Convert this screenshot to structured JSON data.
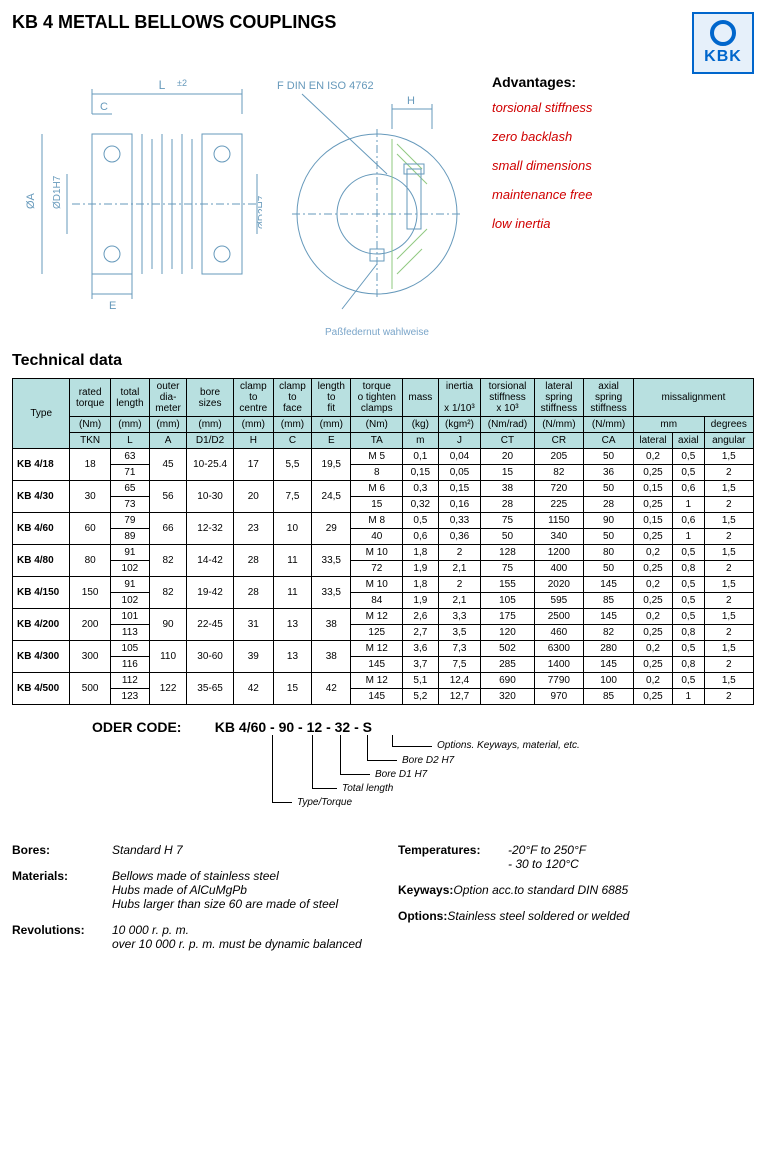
{
  "title": "KB 4  METALL BELLOWS COUPLINGS",
  "logo_text": "KBK",
  "diagram_labels": {
    "L": "L",
    "L_tol": "±2",
    "C": "C",
    "E": "E",
    "A": "ØA",
    "D1": "ØD1H7",
    "D2": "ØD2H7",
    "F": "F  DIN  EN  ISO  4762",
    "H": "H",
    "caption": "Paßfedernut wahlweise"
  },
  "advantages": {
    "title": "Advantages:",
    "items": [
      "torsional stiffness",
      "zero backlash",
      "small dimensions",
      "maintenance free",
      "low inertia"
    ]
  },
  "tech_title": "Technical data",
  "table": {
    "header_bg": "#b8e0e0",
    "columns_top": [
      "Type",
      "rated torque",
      "total length",
      "outer dia-meter",
      "bore sizes",
      "clamp to centre",
      "clamp to face",
      "length to fit",
      "torque o tighten clamps",
      "mass",
      "inertia",
      "torsional stiffness",
      "lateral spring stiffness",
      "axial spring stiffness",
      "missalignment"
    ],
    "units": [
      "",
      "(Nm)\nTKN",
      "(mm)\nL",
      "(mm)\nA",
      "(mm)\nD1/D2",
      "(mm)\nH",
      "(mm)\nC",
      "(mm)\nE",
      "(Nm)\nTA",
      "(kg)\nm",
      "x 1/10³\n(kgm²)\nJ",
      "x 10³\n(Nm/rad)\nCT",
      "(N/mm)\nCR",
      "(N/mm)\nCA",
      "mm",
      "degrees"
    ],
    "misal_sub": [
      "lateral",
      "axial",
      "angular"
    ],
    "rows": [
      {
        "type": "KB 4/18",
        "tkn": "18",
        "L": [
          "63",
          "71"
        ],
        "A": "45",
        "D": "10-25.4",
        "H": "17",
        "C": "5,5",
        "E": "19,5",
        "TA": [
          "M 5",
          "8"
        ],
        "m": [
          "0,1",
          "0,15"
        ],
        "J": [
          "0,04",
          "0,05"
        ],
        "CT": [
          "20",
          "15"
        ],
        "CR": [
          "205",
          "82"
        ],
        "CA": [
          "50",
          "36"
        ],
        "lat": [
          "0,2",
          "0,25"
        ],
        "ax": [
          "0,5",
          "0,5"
        ],
        "ang": [
          "1,5",
          "2"
        ]
      },
      {
        "type": "KB 4/30",
        "tkn": "30",
        "L": [
          "65",
          "73"
        ],
        "A": "56",
        "D": "10-30",
        "H": "20",
        "C": "7,5",
        "E": "24,5",
        "TA": [
          "M 6",
          "15"
        ],
        "m": [
          "0,3",
          "0,32"
        ],
        "J": [
          "0,15",
          "0,16"
        ],
        "CT": [
          "38",
          "28"
        ],
        "CR": [
          "720",
          "225"
        ],
        "CA": [
          "50",
          "28"
        ],
        "lat": [
          "0,15",
          "0,25"
        ],
        "ax": [
          "0,6",
          "1"
        ],
        "ang": [
          "1,5",
          "2"
        ]
      },
      {
        "type": "KB 4/60",
        "tkn": "60",
        "L": [
          "79",
          "89"
        ],
        "A": "66",
        "D": "12-32",
        "H": "23",
        "C": "10",
        "E": "29",
        "TA": [
          "M 8",
          "40"
        ],
        "m": [
          "0,5",
          "0,6"
        ],
        "J": [
          "0,33",
          "0,36"
        ],
        "CT": [
          "75",
          "50"
        ],
        "CR": [
          "1150",
          "340"
        ],
        "CA": [
          "90",
          "50"
        ],
        "lat": [
          "0,15",
          "0,25"
        ],
        "ax": [
          "0,6",
          "1"
        ],
        "ang": [
          "1,5",
          "2"
        ]
      },
      {
        "type": "KB 4/80",
        "tkn": "80",
        "L": [
          "91",
          "102"
        ],
        "A": "82",
        "D": "14-42",
        "H": "28",
        "C": "11",
        "E": "33,5",
        "TA": [
          "M 10",
          "72"
        ],
        "m": [
          "1,8",
          "1,9"
        ],
        "J": [
          "2",
          "2,1"
        ],
        "CT": [
          "128",
          "75"
        ],
        "CR": [
          "1200",
          "400"
        ],
        "CA": [
          "80",
          "50"
        ],
        "lat": [
          "0,2",
          "0,25"
        ],
        "ax": [
          "0,5",
          "0,8"
        ],
        "ang": [
          "1,5",
          "2"
        ]
      },
      {
        "type": "KB 4/150",
        "tkn": "150",
        "L": [
          "91",
          "102"
        ],
        "A": "82",
        "D": "19-42",
        "H": "28",
        "C": "11",
        "E": "33,5",
        "TA": [
          "M 10",
          "84"
        ],
        "m": [
          "1,8",
          "1,9"
        ],
        "J": [
          "2",
          "2,1"
        ],
        "CT": [
          "155",
          "105"
        ],
        "CR": [
          "2020",
          "595"
        ],
        "CA": [
          "145",
          "85"
        ],
        "lat": [
          "0,2",
          "0,25"
        ],
        "ax": [
          "0,5",
          "0,5"
        ],
        "ang": [
          "1,5",
          "2"
        ]
      },
      {
        "type": "KB 4/200",
        "tkn": "200",
        "L": [
          "101",
          "113"
        ],
        "A": "90",
        "D": "22-45",
        "H": "31",
        "C": "13",
        "E": "38",
        "TA": [
          "M 12",
          "125"
        ],
        "m": [
          "2,6",
          "2,7"
        ],
        "J": [
          "3,3",
          "3,5"
        ],
        "CT": [
          "175",
          "120"
        ],
        "CR": [
          "2500",
          "460"
        ],
        "CA": [
          "145",
          "82"
        ],
        "lat": [
          "0,2",
          "0,25"
        ],
        "ax": [
          "0,5",
          "0,8"
        ],
        "ang": [
          "1,5",
          "2"
        ]
      },
      {
        "type": "KB 4/300",
        "tkn": "300",
        "L": [
          "105",
          "116"
        ],
        "A": "110",
        "D": "30-60",
        "H": "39",
        "C": "13",
        "E": "38",
        "TA": [
          "M 12",
          "145"
        ],
        "m": [
          "3,6",
          "3,7"
        ],
        "J": [
          "7,3",
          "7,5"
        ],
        "CT": [
          "502",
          "285"
        ],
        "CR": [
          "6300",
          "1400"
        ],
        "CA": [
          "280",
          "145"
        ],
        "lat": [
          "0,2",
          "0,25"
        ],
        "ax": [
          "0,5",
          "0,8"
        ],
        "ang": [
          "1,5",
          "2"
        ]
      },
      {
        "type": "KB 4/500",
        "tkn": "500",
        "L": [
          "112",
          "123"
        ],
        "A": "122",
        "D": "35-65",
        "H": "42",
        "C": "15",
        "E": "42",
        "TA": [
          "M 12",
          "145"
        ],
        "m": [
          "5,1",
          "5,2"
        ],
        "J": [
          "12,4",
          "12,7"
        ],
        "CT": [
          "690",
          "320"
        ],
        "CR": [
          "7790",
          "970"
        ],
        "CA": [
          "100",
          "85"
        ],
        "lat": [
          "0,2",
          "0,25"
        ],
        "ax": [
          "0,5",
          "1"
        ],
        "ang": [
          "1,5",
          "2"
        ]
      }
    ]
  },
  "order": {
    "title": "ODER CODE:",
    "code": "KB 4/60 - 90 - 12 - 32 - S",
    "labels": {
      "opt": "Options. Keyways, material, etc.",
      "d2": "Bore D2 H7",
      "d1": "Bore D1 H7",
      "len": "Total length",
      "type": "Type/Torque"
    }
  },
  "specs": {
    "bores": {
      "label": "Bores:",
      "val": "Standard H 7"
    },
    "materials": {
      "label": "Materials:",
      "val": "Bellows made of stainless steel\nHubs made of AlCuMgPb\nHubs larger than size 60 are made of steel"
    },
    "rev": {
      "label": "Revolutions:",
      "val": "10 000 r. p. m.\nover 10 000 r. p. m. must be dynamic balanced"
    },
    "temp": {
      "label": "Temperatures:",
      "val": "-20°F to 250°F\n- 30 to 120°C"
    },
    "keyways": {
      "label": "Keyways:",
      "val": "Option acc.to standard DIN 6885"
    },
    "options": {
      "label": "Options:",
      "val": "Stainless steel soldered or welded"
    }
  }
}
